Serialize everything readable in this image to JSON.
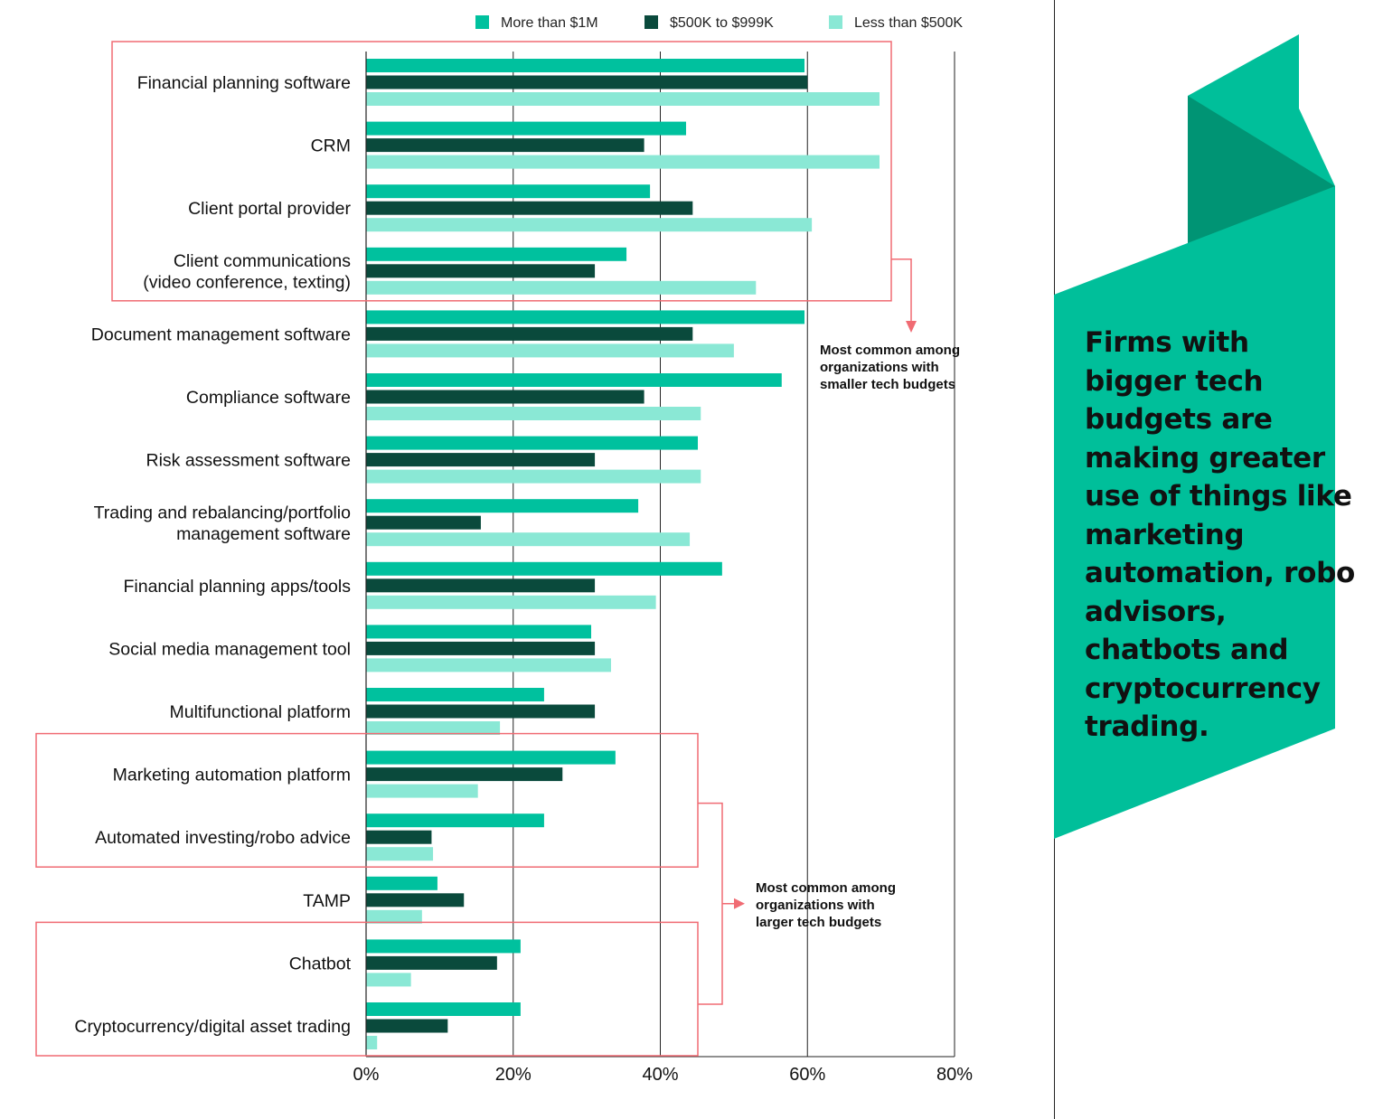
{
  "chart_data": {
    "type": "bar",
    "orientation": "horizontal",
    "title": "",
    "xlabel": "",
    "ylabel": "",
    "xlim": [
      0,
      80
    ],
    "xticks": [
      "0%",
      "20%",
      "40%",
      "60%",
      "80%"
    ],
    "legend": {
      "placement": "top"
    },
    "categories": [
      {
        "label": [
          "Financial planning software"
        ]
      },
      {
        "label": [
          "CRM"
        ]
      },
      {
        "label": [
          "Client portal provider"
        ]
      },
      {
        "label": [
          "Client communications",
          "(video conference, texting)"
        ]
      },
      {
        "label": [
          "Document management software"
        ]
      },
      {
        "label": [
          "Compliance software"
        ]
      },
      {
        "label": [
          "Risk assessment software"
        ]
      },
      {
        "label": [
          "Trading and rebalancing/portfolio",
          "management software"
        ]
      },
      {
        "label": [
          "Financial planning apps/tools"
        ]
      },
      {
        "label": [
          "Social media management tool"
        ]
      },
      {
        "label": [
          "Multifunctional platform"
        ]
      },
      {
        "label": [
          "Marketing automation platform"
        ]
      },
      {
        "label": [
          "Automated investing/robo advice"
        ]
      },
      {
        "label": [
          "TAMP"
        ]
      },
      {
        "label": [
          "Chatbot"
        ]
      },
      {
        "label": [
          "Cryptocurrency/digital asset trading"
        ]
      }
    ],
    "series": [
      {
        "name": "More than $1M",
        "color": "#00c19e",
        "values": [
          59.6,
          43.5,
          38.6,
          35.4,
          59.6,
          56.5,
          45.1,
          37.0,
          48.4,
          30.6,
          24.2,
          33.9,
          24.2,
          9.7,
          21.0,
          21.0
        ]
      },
      {
        "name": "$500K to $999K",
        "color": "#0a4a3c",
        "values": [
          60.0,
          37.8,
          44.4,
          31.1,
          44.4,
          37.8,
          31.1,
          15.6,
          31.1,
          31.1,
          31.1,
          26.7,
          8.9,
          13.3,
          17.8,
          11.1
        ]
      },
      {
        "name": "Less than $500K",
        "color": "#8ae8d5",
        "values": [
          69.8,
          69.8,
          60.6,
          53.0,
          50.0,
          45.5,
          45.5,
          44.0,
          39.4,
          33.3,
          18.2,
          15.2,
          9.1,
          7.6,
          6.1,
          1.5
        ]
      }
    ],
    "annotations": [
      {
        "id": "small",
        "lines": [
          "Most common among",
          "organizations with",
          "smaller tech budgets"
        ]
      },
      {
        "id": "large",
        "lines": [
          "Most common among",
          "organizations with",
          "larger tech budgets"
        ]
      }
    ]
  },
  "callout": {
    "text": "Firms with bigger tech budgets are making greater use of things like marketing automation, robo advisors, chatbots and cryptocurrency trading.",
    "colors": {
      "main": "#00bf9a",
      "dark": "#009474"
    }
  },
  "highlight_color": "#f06b73"
}
